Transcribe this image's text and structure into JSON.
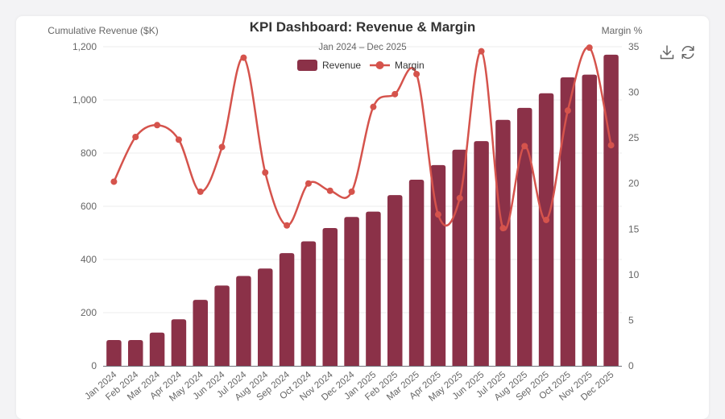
{
  "toolbar": {
    "download_icon": "download-icon",
    "refresh_icon": "refresh-icon"
  },
  "colors": {
    "bar": "#8b3148",
    "line": "#d5534c",
    "axis_text": "#666666",
    "title": "#333333",
    "grid": "#eeeeee"
  },
  "chart_data": {
    "type": "bar",
    "title": "KPI Dashboard: Revenue & Margin",
    "subtitle": "Jan 2024 – Dec 2025",
    "ylabel": "Cumulative Revenue ($K)",
    "y2label": "Margin %",
    "ylim": [
      0,
      1200
    ],
    "y2lim": [
      0,
      35
    ],
    "yticks": [
      0,
      200,
      400,
      600,
      800,
      1000,
      1200
    ],
    "yticklabels": [
      "0",
      "200",
      "400",
      "600",
      "800",
      "1,000",
      "1,200"
    ],
    "y2ticks": [
      0,
      5,
      10,
      15,
      20,
      25,
      30,
      35
    ],
    "legend_position": "top-center",
    "grid": true,
    "categories": [
      "Jan 2024",
      "Feb 2024",
      "Mar 2024",
      "Apr 2024",
      "May 2024",
      "Jun 2024",
      "Jul 2024",
      "Aug 2024",
      "Sep 2024",
      "Oct 2024",
      "Nov 2024",
      "Dec 2024",
      "Jan 2025",
      "Feb 2025",
      "Mar 2025",
      "Apr 2025",
      "May 2025",
      "Jun 2025",
      "Jul 2025",
      "Aug 2025",
      "Sep 2025",
      "Oct 2025",
      "Nov 2025",
      "Dec 2025"
    ],
    "series": [
      {
        "name": "Revenue",
        "type": "bar",
        "axis": "left",
        "values": [
          97,
          97,
          125,
          175,
          248,
          302,
          338,
          366,
          424,
          468,
          518,
          560,
          580,
          642,
          700,
          755,
          813,
          845,
          925,
          970,
          1025,
          1085,
          1095,
          1170
        ]
      },
      {
        "name": "Margin",
        "type": "line",
        "axis": "right",
        "values": [
          20.2,
          25.1,
          26.4,
          24.8,
          19.1,
          24.0,
          33.8,
          21.2,
          15.4,
          20.0,
          19.2,
          19.1,
          28.4,
          29.8,
          32.0,
          16.6,
          18.4,
          34.5,
          15.1,
          24.1,
          16.0,
          28.0,
          34.9,
          24.2
        ]
      }
    ]
  }
}
